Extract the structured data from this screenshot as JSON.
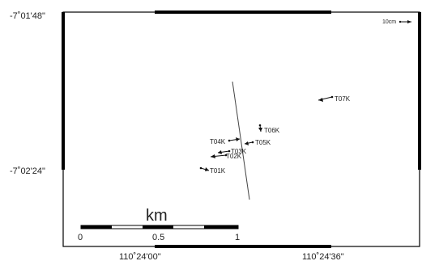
{
  "map": {
    "lat_labels": [
      "-7˚01'48\"",
      "-7˚02'24\""
    ],
    "lon_labels": [
      "110˚24'00\"",
      "110˚24'36\""
    ],
    "reference_vector": "10cm",
    "scale_bar": {
      "unit": "km",
      "ticks": [
        "0",
        "0.5",
        "1"
      ]
    },
    "stations": [
      {
        "id": "T01K"
      },
      {
        "id": "T02K"
      },
      {
        "id": "T03K"
      },
      {
        "id": "T04K"
      },
      {
        "id": "T05K"
      },
      {
        "id": "T06K"
      },
      {
        "id": "T07K"
      }
    ],
    "colors": {
      "frame": "#000000",
      "vector": "#111111",
      "fault": "#444444"
    }
  }
}
